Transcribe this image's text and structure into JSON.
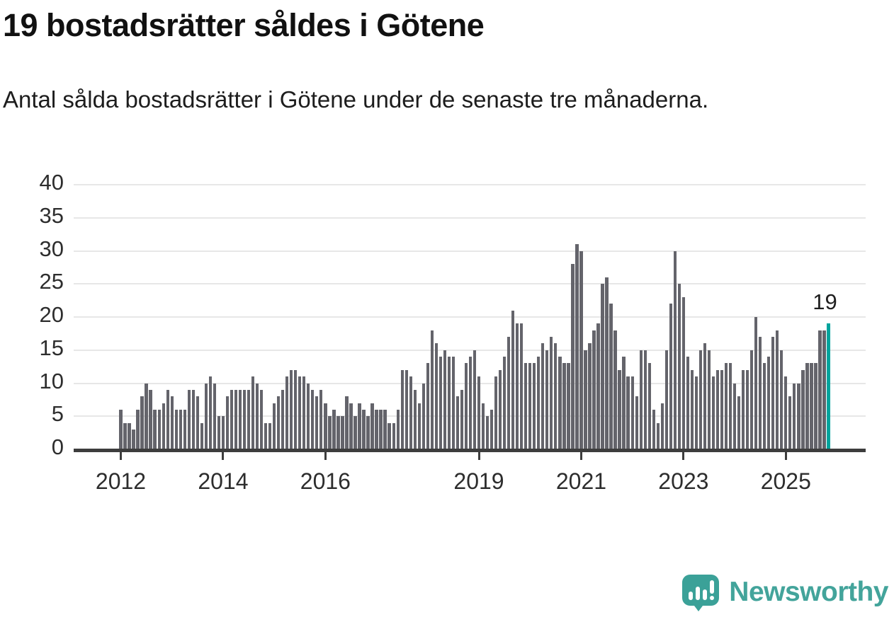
{
  "header": {
    "title": "19 bostadsrätter såldes i Götene",
    "subtitle": "Antal sålda bostadsrätter i Götene under de senaste tre månaderna."
  },
  "chart_data": {
    "type": "bar",
    "title": "19 bostadsrätter såldes i Götene",
    "xlabel": "",
    "ylabel": "",
    "start_month": "2012-01",
    "end_month": "2025-11",
    "values": [
      6,
      4,
      4,
      3,
      6,
      8,
      10,
      9,
      6,
      6,
      7,
      9,
      8,
      6,
      6,
      6,
      9,
      9,
      8,
      4,
      10,
      11,
      10,
      5,
      5,
      8,
      9,
      9,
      9,
      9,
      9,
      11,
      10,
      9,
      4,
      4,
      7,
      8,
      9,
      11,
      12,
      12,
      11,
      11,
      10,
      9,
      8,
      9,
      7,
      5,
      6,
      5,
      5,
      8,
      7,
      5,
      7,
      6,
      5,
      7,
      6,
      6,
      6,
      4,
      4,
      6,
      12,
      12,
      11,
      9,
      7,
      10,
      13,
      18,
      16,
      14,
      15,
      14,
      14,
      8,
      9,
      13,
      14,
      15,
      11,
      7,
      5,
      6,
      11,
      12,
      14,
      17,
      21,
      19,
      19,
      13,
      13,
      13,
      14,
      16,
      15,
      17,
      16,
      14,
      13,
      13,
      28,
      31,
      30,
      15,
      16,
      18,
      19,
      25,
      26,
      22,
      18,
      12,
      14,
      11,
      11,
      8,
      15,
      15,
      13,
      6,
      4,
      7,
      15,
      22,
      30,
      25,
      23,
      14,
      12,
      11,
      15,
      16,
      15,
      11,
      12,
      12,
      13,
      13,
      10,
      8,
      12,
      12,
      15,
      20,
      17,
      13,
      14,
      17,
      18,
      15,
      11,
      8,
      10,
      10,
      12,
      13,
      13,
      13,
      18,
      18,
      19
    ],
    "highlight_last": true,
    "last_value_label": "19",
    "ylim": [
      0,
      40
    ],
    "yticks": [
      0,
      5,
      10,
      15,
      20,
      25,
      30,
      35,
      40
    ],
    "xticks": [
      {
        "label": "2012",
        "month_index": 0
      },
      {
        "label": "2014",
        "month_index": 24
      },
      {
        "label": "2016",
        "month_index": 48
      },
      {
        "label": "2019",
        "month_index": 84
      },
      {
        "label": "2021",
        "month_index": 108
      },
      {
        "label": "2023",
        "month_index": 132
      },
      {
        "label": "2025",
        "month_index": 156
      }
    ],
    "grid": true,
    "legend": false,
    "colors": {
      "bar": "#64646B",
      "highlight": "#00A49D",
      "gridline": "#E7E7E7",
      "axis": "#3D3D3D",
      "tick_label": "#2D2D2D",
      "annotation": "#1F1F1F"
    }
  },
  "footer": {
    "brand": "Newsworthy",
    "brand_color": "#43A49B"
  }
}
